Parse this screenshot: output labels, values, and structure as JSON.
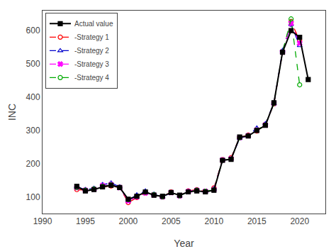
{
  "chart_data": {
    "type": "line",
    "xlabel": "Year",
    "ylabel": "INC",
    "x": [
      1994,
      1995,
      1996,
      1997,
      1998,
      1999,
      2000,
      2001,
      2002,
      2003,
      2004,
      2005,
      2006,
      2007,
      2008,
      2009,
      2010,
      2011,
      2012,
      2013,
      2014,
      2015,
      2016,
      2017,
      2018,
      2019,
      2020,
      2021
    ],
    "series": [
      {
        "name": "Actual value",
        "color": "#000000",
        "marker": "square",
        "line_style": "solid",
        "values": [
          132,
          118,
          122,
          130,
          135,
          128,
          93,
          102,
          115,
          105,
          102,
          113,
          105,
          115,
          118,
          115,
          120,
          210,
          213,
          280,
          283,
          300,
          315,
          383,
          535,
          600,
          580,
          453
        ]
      },
      {
        "name": "-Strategy 1",
        "color": "#ff0000",
        "marker": "circle-open",
        "line_style": "dashed",
        "values": [
          122,
          120,
          124,
          130,
          133,
          128,
          83,
          98,
          112,
          106,
          100,
          115,
          104,
          118,
          122,
          116,
          127,
          212,
          218,
          279,
          286,
          298,
          318,
          380,
          535,
          627,
          570,
          null
        ]
      },
      {
        "name": "-Strategy 2",
        "color": "#0000cc",
        "marker": "triangle-up-open",
        "line_style": "dashed",
        "values": [
          130,
          122,
          126,
          137,
          142,
          130,
          90,
          106,
          118,
          108,
          100,
          112,
          103,
          116,
          120,
          115,
          124,
          210,
          214,
          276,
          284,
          307,
          320,
          382,
          540,
          618,
          555,
          null
        ]
      },
      {
        "name": "-Strategy 3",
        "color": "#ff00ff",
        "marker": "x",
        "line_style": "dashed",
        "values": [
          128,
          120,
          123,
          134,
          137,
          128,
          88,
          100,
          112,
          106,
          100,
          113,
          103,
          116,
          120,
          117,
          122,
          211,
          215,
          278,
          284,
          301,
          316,
          381,
          536,
          622,
          562,
          null
        ]
      },
      {
        "name": "-Strategy 4",
        "color": "#00aa00",
        "marker": "circle-open",
        "line_style": "dashed",
        "values": [
          128,
          120,
          124,
          132,
          136,
          128,
          92,
          102,
          114,
          107,
          100,
          113,
          103,
          115,
          120,
          117,
          122,
          210,
          214,
          278,
          284,
          301,
          316,
          381,
          536,
          635,
          437,
          null
        ]
      }
    ],
    "xlim": [
      1990,
      2023
    ],
    "xticks": [
      1990,
      1995,
      2000,
      2005,
      2010,
      2015,
      2020
    ],
    "ylim": [
      50,
      660
    ],
    "yticks": [
      100,
      200,
      300,
      400,
      500,
      600
    ],
    "grid": false,
    "legend": "upper left"
  }
}
